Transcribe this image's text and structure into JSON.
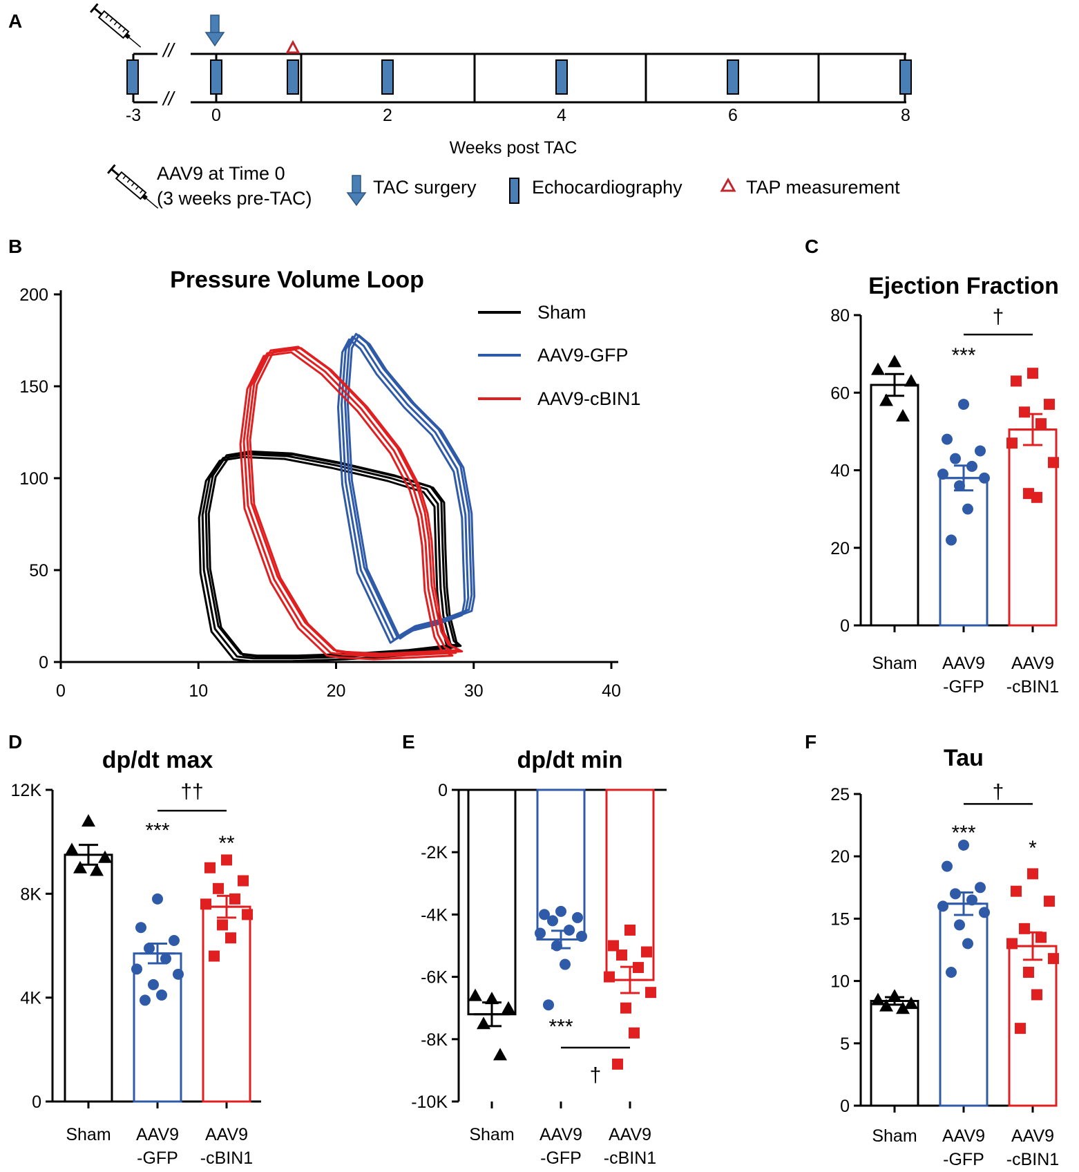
{
  "panels": {
    "A": {
      "label": "A",
      "timeline": {
        "ticks": [
          "-3",
          "0",
          "2",
          "4",
          "6",
          "8"
        ],
        "break_mark": "//",
        "xlabel": "Weeks post TAC"
      },
      "legend": {
        "aav_line1": "AAV9 at Time 0",
        "aav_line2": "(3 weeks pre-TAC)",
        "tac": "TAC surgery",
        "echo": "Echocardiography",
        "tap": "TAP measurement"
      }
    },
    "B": {
      "label": "B"
    },
    "C": {
      "label": "C"
    },
    "D": {
      "label": "D"
    },
    "E": {
      "label": "E"
    },
    "F": {
      "label": "F"
    }
  },
  "colors": {
    "sham": "#000000",
    "gfp": "#2e5aa8",
    "cbin1": "#e02020",
    "timeline_blue": "#4a7fb5",
    "tap_red": "#c0272d"
  },
  "chart_data": [
    {
      "id": "pv",
      "panel": "B",
      "type": "line",
      "title": "Pressure Volume Loop",
      "xlabel": "",
      "ylabel": "",
      "xlim": [
        0,
        40
      ],
      "ylim": [
        0,
        200
      ],
      "xticks": [
        "0",
        "10",
        "20",
        "30",
        "40"
      ],
      "yticks": [
        "0",
        "50",
        "100",
        "150",
        "200"
      ],
      "legend": [
        "Sham",
        "AAV9-GFP",
        "AAV9-cBIN1"
      ],
      "series": [
        {
          "name": "Sham",
          "color": "#000000",
          "x": [
            12.8,
            11.2,
            10.4,
            10.3,
            10.8,
            11.8,
            13.5,
            16.5,
            20,
            24,
            26.6,
            27.4,
            27.5,
            27.6,
            27.8,
            28.1,
            28.3,
            28.6,
            25,
            21,
            17,
            14,
            12.8
          ],
          "y": [
            3,
            18,
            50,
            80,
            100,
            111,
            113,
            112,
            107,
            100,
            94,
            86,
            60,
            40,
            25,
            16,
            10,
            8,
            5,
            3,
            2,
            2,
            3
          ]
        },
        {
          "name": "AAV9-GFP",
          "color": "#2e5aa8",
          "x": [
            24.2,
            21.8,
            20.7,
            20.4,
            20.7,
            21.2,
            22,
            23.2,
            25.2,
            27.2,
            28.8,
            29.4,
            29.5,
            29.6,
            29.4,
            27.6,
            25.5,
            24.6,
            24.2
          ],
          "y": [
            12,
            50,
            98,
            140,
            170,
            177,
            172,
            158,
            140,
            125,
            105,
            80,
            55,
            35,
            27,
            22,
            18,
            14,
            12
          ]
        },
        {
          "name": "AAV9-cBIN1",
          "color": "#e02020",
          "x": [
            19.6,
            17.5,
            15.5,
            13.6,
            13.3,
            13.8,
            15,
            17,
            19.2,
            21.8,
            24.2,
            25.6,
            26.2,
            26.5,
            26.7,
            27.1,
            27.4,
            27.9,
            28.7,
            26,
            23,
            20.5,
            19.6
          ],
          "y": [
            5,
            20,
            45,
            85,
            120,
            150,
            168,
            170,
            158,
            138,
            115,
            95,
            80,
            65,
            40,
            25,
            15,
            8,
            5,
            4,
            3,
            4,
            5
          ]
        }
      ]
    },
    {
      "id": "ef",
      "panel": "C",
      "type": "bar",
      "title": "Ejection Fraction",
      "categories": [
        "Sham",
        "AAV9\n-GFP",
        "AAV9\n-cBIN1"
      ],
      "series": [
        {
          "name": "Sham",
          "mean": 62,
          "sem": 2.8,
          "color": "#000000",
          "marker": "triangle",
          "points": [
            68,
            66,
            63,
            58,
            54
          ]
        },
        {
          "name": "AAV9-GFP",
          "mean": 38,
          "sem": 3.2,
          "color": "#2e5aa8",
          "marker": "circle",
          "points": [
            57,
            48,
            45,
            43,
            41,
            39,
            38,
            36,
            30,
            22
          ]
        },
        {
          "name": "AAV9-cBIN1",
          "mean": 50.5,
          "sem": 4,
          "color": "#e02020",
          "marker": "square",
          "points": [
            65,
            63,
            57,
            55,
            52,
            47,
            42,
            34,
            33
          ]
        }
      ],
      "ylim": [
        0,
        80
      ],
      "yticks": [
        0,
        20,
        40,
        60,
        80
      ],
      "ytick_labels": [
        "0",
        "20",
        "40",
        "60",
        "80"
      ],
      "annotations": [
        {
          "text": "***",
          "group": 1,
          "y": 70
        },
        {
          "text": "†",
          "group": 1.5,
          "y": 80,
          "bracket": [
            1,
            2
          ],
          "bracket_y": 75
        }
      ]
    },
    {
      "id": "dpmax",
      "panel": "D",
      "type": "bar",
      "title": "dp/dt max",
      "categories": [
        "Sham",
        "AAV9\n-GFP",
        "AAV9\n-cBIN1"
      ],
      "series": [
        {
          "name": "Sham",
          "mean": 9500,
          "sem": 380,
          "color": "#000000",
          "marker": "triangle",
          "points": [
            10800,
            9700,
            9400,
            9000,
            8900
          ]
        },
        {
          "name": "AAV9-GFP",
          "mean": 5700,
          "sem": 380,
          "color": "#2e5aa8",
          "marker": "circle",
          "points": [
            7800,
            6700,
            6200,
            5900,
            5500,
            5100,
            4900,
            4500,
            4100,
            3900
          ]
        },
        {
          "name": "AAV9-cBIN1",
          "mean": 7500,
          "sem": 420,
          "color": "#e02020",
          "marker": "square",
          "points": [
            9300,
            9000,
            8500,
            8200,
            7800,
            7600,
            7200,
            6800,
            6300,
            5600
          ]
        }
      ],
      "ylim": [
        0,
        12000
      ],
      "yticks": [
        0,
        4000,
        8000,
        12000
      ],
      "ytick_labels": [
        "0",
        "4K",
        "8K",
        "12K"
      ],
      "annotations": [
        {
          "text": "***",
          "group": 1,
          "y": 10500
        },
        {
          "text": "**",
          "group": 2,
          "y": 10000
        },
        {
          "text": "††",
          "group": 1.5,
          "y": 12000,
          "bracket": [
            1,
            2
          ],
          "bracket_y": 11200
        }
      ]
    },
    {
      "id": "dpmin",
      "panel": "E",
      "type": "bar",
      "title": "dp/dt min",
      "categories": [
        "Sham",
        "AAV9\n-GFP",
        "AAV9\n-cBIN1"
      ],
      "series": [
        {
          "name": "Sham",
          "mean": -7200,
          "sem": 380,
          "color": "#000000",
          "marker": "triangle",
          "points": [
            -6700,
            -6600,
            -7000,
            -7500,
            -8500
          ]
        },
        {
          "name": "AAV9-GFP",
          "mean": -4800,
          "sem": 280,
          "color": "#2e5aa8",
          "marker": "circle",
          "points": [
            -3900,
            -4000,
            -4100,
            -4200,
            -4500,
            -4600,
            -4700,
            -5000,
            -5600,
            -6900
          ]
        },
        {
          "name": "AAV9-cBIN1",
          "mean": -6100,
          "sem": 420,
          "color": "#e02020",
          "marker": "square",
          "points": [
            -4500,
            -5000,
            -5200,
            -5300,
            -5700,
            -6000,
            -6500,
            -7000,
            -7800,
            -8800
          ]
        }
      ],
      "ylim": [
        -10000,
        0
      ],
      "yticks": [
        -10000,
        -8000,
        -6000,
        -4000,
        -2000,
        0
      ],
      "ytick_labels": [
        "-10K",
        "-8K",
        "-6K",
        "-4K",
        "-2K",
        "0"
      ],
      "annotations": [
        {
          "text": "***",
          "group": 1,
          "y": -7550
        },
        {
          "text": "†",
          "group": 1.5,
          "y": -9100,
          "bracket": [
            1,
            2
          ],
          "bracket_y": -8270
        }
      ]
    },
    {
      "id": "tau",
      "panel": "F",
      "type": "bar",
      "title": "Tau",
      "categories": [
        "Sham",
        "AAV9\n-GFP",
        "AAV9\n-cBIN1"
      ],
      "series": [
        {
          "name": "Sham",
          "mean": 8.4,
          "sem": 0.3,
          "color": "#000000",
          "marker": "triangle",
          "points": [
            8.8,
            8.5,
            8.2,
            8.0,
            7.8
          ]
        },
        {
          "name": "AAV9-GFP",
          "mean": 16.2,
          "sem": 0.9,
          "color": "#2e5aa8",
          "marker": "circle",
          "points": [
            20.9,
            19.2,
            17.5,
            17.0,
            16.5,
            16.0,
            15.5,
            14.5,
            13.0,
            10.7
          ]
        },
        {
          "name": "AAV9-cBIN1",
          "mean": 12.8,
          "sem": 1.1,
          "color": "#e02020",
          "marker": "square",
          "points": [
            18.6,
            17.2,
            16.4,
            14.2,
            13.5,
            13.0,
            11.8,
            10.7,
            8.9,
            6.2
          ]
        }
      ],
      "ylim": [
        0,
        25
      ],
      "yticks": [
        0,
        5,
        10,
        15,
        20,
        25
      ],
      "ytick_labels": [
        "0",
        "5",
        "10",
        "15",
        "20",
        "25"
      ],
      "annotations": [
        {
          "text": "***",
          "group": 1,
          "y": 22
        },
        {
          "text": "*",
          "group": 2,
          "y": 20.8
        },
        {
          "text": "†",
          "group": 1.5,
          "y": 25.3,
          "bracket": [
            1,
            2
          ],
          "bracket_y": 24.2
        }
      ]
    }
  ]
}
